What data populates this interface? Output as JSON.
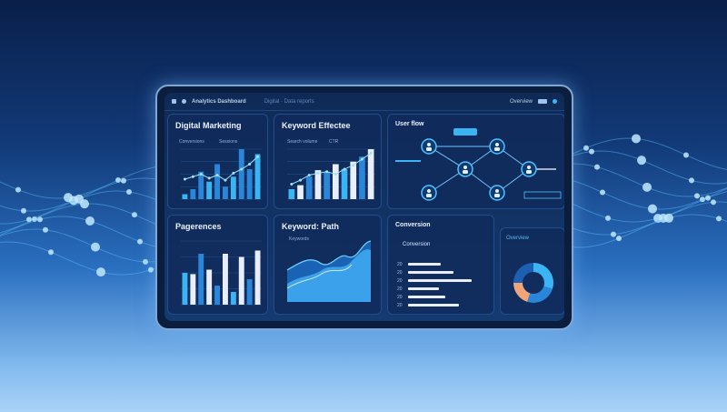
{
  "topbar": {
    "app_name": "Analytics Dashboard",
    "crumb": "Digital · Data reports",
    "right_label": "Overview"
  },
  "panels": {
    "digital_marketing": {
      "title": "Digital Marketing",
      "legend": [
        "Conversions",
        "Sessions"
      ],
      "bars": [
        10,
        20,
        55,
        35,
        70,
        25,
        45,
        100,
        60,
        90
      ],
      "line": [
        40,
        45,
        50,
        42,
        48,
        38,
        52,
        60,
        70,
        85
      ]
    },
    "keyword_effect": {
      "title": "Keyword Effectee",
      "legend": [
        "Search volume",
        "CTR"
      ],
      "bars": [
        20,
        28,
        45,
        58,
        55,
        70,
        60,
        75,
        85,
        100
      ],
      "line": [
        30,
        38,
        48,
        52,
        55,
        50,
        60,
        68,
        80,
        92
      ]
    },
    "user_flow": {
      "title": "User flow",
      "nodes": [
        "user",
        "user",
        "user",
        "user",
        "user",
        "user"
      ]
    },
    "page_traffic": {
      "title": "Pagerences",
      "bars": [
        50,
        48,
        80,
        55,
        30,
        80,
        20,
        75,
        40,
        85
      ]
    },
    "keyword_path": {
      "title": "Keyword: Path",
      "legend": "Keywords"
    },
    "conversion": {
      "title": "Conversion",
      "subtitle": "Conversion",
      "rows": [
        {
          "label": "20",
          "value": 40
        },
        {
          "label": "20",
          "value": 55
        },
        {
          "label": "20",
          "value": 78
        },
        {
          "label": "20",
          "value": 38
        },
        {
          "label": "20",
          "value": 46
        },
        {
          "label": "20",
          "value": 62
        }
      ]
    },
    "overview": {
      "title": "Overview",
      "donut": [
        30,
        25,
        20,
        25
      ]
    }
  },
  "colors": {
    "accent": "#3ab4f2",
    "bar_light": "#e8eefb",
    "orange": "#f0a47a"
  }
}
